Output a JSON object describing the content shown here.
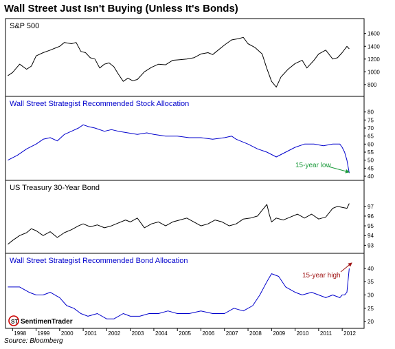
{
  "title": "Wall Street Just Isn't Buying (Unless It's Bonds)",
  "source": "Source: Bloomberg",
  "logo_text": "SentimenTrader",
  "colors": {
    "black": "#000000",
    "blue": "#0000cc",
    "green": "#1a9a3a",
    "red": "#a01818"
  },
  "chart_data": [
    {
      "type": "line",
      "title": "S&P 500",
      "title_color": "#000000",
      "line_color": "#000000",
      "ylim": [
        680,
        1640
      ],
      "yticks": [
        800,
        1000,
        1200,
        1400,
        1600
      ],
      "x": [
        1997.8,
        1998.0,
        1998.3,
        1998.6,
        1998.8,
        1999.0,
        1999.3,
        1999.6,
        1999.8,
        2000.0,
        2000.2,
        2000.5,
        2000.7,
        2000.9,
        2001.1,
        2001.3,
        2001.5,
        2001.7,
        2001.9,
        2002.1,
        2002.3,
        2002.5,
        2002.7,
        2002.9,
        2003.1,
        2003.3,
        2003.6,
        2003.9,
        2004.2,
        2004.5,
        2004.8,
        2005.1,
        2005.4,
        2005.7,
        2006.0,
        2006.3,
        2006.5,
        2006.7,
        2007.0,
        2007.3,
        2007.6,
        2007.8,
        2008.0,
        2008.3,
        2008.6,
        2008.8,
        2009.0,
        2009.2,
        2009.4,
        2009.7,
        2010.0,
        2010.3,
        2010.5,
        2010.8,
        2011.0,
        2011.3,
        2011.6,
        2011.8,
        2012.0,
        2012.2,
        2012.3
      ],
      "y": [
        940,
        990,
        1120,
        1040,
        1090,
        1250,
        1300,
        1340,
        1370,
        1400,
        1460,
        1440,
        1460,
        1320,
        1300,
        1220,
        1200,
        1060,
        1120,
        1140,
        1080,
        960,
        850,
        900,
        860,
        880,
        1000,
        1070,
        1120,
        1110,
        1180,
        1190,
        1200,
        1220,
        1280,
        1300,
        1270,
        1330,
        1420,
        1500,
        1520,
        1540,
        1440,
        1380,
        1280,
        1050,
        850,
        760,
        920,
        1040,
        1130,
        1180,
        1060,
        1180,
        1280,
        1340,
        1200,
        1220,
        1300,
        1400,
        1360
      ]
    },
    {
      "type": "line",
      "title": "Wall Street Strategist Recommended Stock Allocation",
      "title_color": "#0000cc",
      "line_color": "#0000cc",
      "ylim": [
        40,
        82
      ],
      "yticks": [
        40,
        45,
        50,
        55,
        60,
        65,
        70,
        75,
        80
      ],
      "x": [
        1997.8,
        1998.2,
        1998.6,
        1999.0,
        1999.3,
        1999.6,
        1999.9,
        2000.2,
        2000.5,
        2000.8,
        2001.0,
        2001.2,
        2001.5,
        2001.9,
        2002.2,
        2002.5,
        2002.9,
        2003.3,
        2003.7,
        2004.0,
        2004.5,
        2005.0,
        2005.5,
        2006.0,
        2006.5,
        2007.0,
        2007.3,
        2007.5,
        2008.0,
        2008.4,
        2008.8,
        2009.2,
        2009.6,
        2010.0,
        2010.4,
        2010.8,
        2011.2,
        2011.6,
        2011.9,
        2012.0,
        2012.1,
        2012.2,
        2012.3
      ],
      "y": [
        50,
        53,
        57,
        60,
        63,
        64,
        62,
        66,
        68,
        70,
        72,
        71,
        70,
        68,
        69,
        68,
        67,
        66,
        67,
        66,
        65,
        65,
        64,
        64,
        63,
        64,
        65,
        63,
        60,
        57,
        55,
        52,
        55,
        58,
        60,
        60,
        59,
        60,
        60,
        58,
        55,
        50,
        42
      ]
    },
    {
      "type": "line",
      "title": "US Treasury 30-Year Bond",
      "title_color": "#000000",
      "line_color": "#000000",
      "ylim": [
        92.6,
        98.4
      ],
      "yticks": [
        93,
        94,
        95,
        96,
        97
      ],
      "x": [
        1997.8,
        1998.0,
        1998.3,
        1998.6,
        1998.8,
        1999.0,
        1999.3,
        1999.6,
        1999.9,
        2000.2,
        2000.5,
        2000.8,
        2001.0,
        2001.3,
        2001.6,
        2001.9,
        2002.2,
        2002.5,
        2002.8,
        2003.0,
        2003.3,
        2003.6,
        2003.9,
        2004.2,
        2004.5,
        2004.8,
        2005.1,
        2005.4,
        2005.7,
        2006.0,
        2006.3,
        2006.6,
        2006.9,
        2007.2,
        2007.5,
        2007.8,
        2008.1,
        2008.4,
        2008.6,
        2008.8,
        2008.9,
        2009.0,
        2009.2,
        2009.5,
        2009.8,
        2010.1,
        2010.4,
        2010.7,
        2011.0,
        2011.3,
        2011.6,
        2011.8,
        2012.0,
        2012.2,
        2012.3
      ],
      "y": [
        93.1,
        93.5,
        94.0,
        94.3,
        94.7,
        94.5,
        94.0,
        94.4,
        93.8,
        94.3,
        94.6,
        95.0,
        95.2,
        94.9,
        95.1,
        94.8,
        95.0,
        95.3,
        95.6,
        95.4,
        95.8,
        94.8,
        95.2,
        95.4,
        95.0,
        95.4,
        95.6,
        95.8,
        95.4,
        95.0,
        95.2,
        95.6,
        95.4,
        95.0,
        95.2,
        95.7,
        95.8,
        96.0,
        96.6,
        97.2,
        96.2,
        95.4,
        95.8,
        95.6,
        95.9,
        96.2,
        95.8,
        96.2,
        95.7,
        95.9,
        96.8,
        97.0,
        96.9,
        96.8,
        97.3
      ]
    },
    {
      "type": "line",
      "title": "Wall Street Strategist Recommended Bond Allocation",
      "title_color": "#0000cc",
      "line_color": "#0000cc",
      "ylim": [
        19,
        41
      ],
      "yticks": [
        20,
        25,
        30,
        35,
        40
      ],
      "xlabels": [
        "1998",
        "1999",
        "2000",
        "2001",
        "2002",
        "2003",
        "2004",
        "2005",
        "2006",
        "2007",
        "2008",
        "2009",
        "2010",
        "2011",
        "2012"
      ],
      "x": [
        1997.8,
        1998.3,
        1998.7,
        1999.0,
        1999.3,
        1999.6,
        2000.0,
        2000.3,
        2000.6,
        2000.9,
        2001.2,
        2001.6,
        2002.0,
        2002.3,
        2002.7,
        2003.0,
        2003.4,
        2003.8,
        2004.2,
        2004.6,
        2005.0,
        2005.5,
        2006.0,
        2006.5,
        2007.0,
        2007.4,
        2007.8,
        2008.2,
        2008.5,
        2008.8,
        2009.0,
        2009.3,
        2009.6,
        2010.0,
        2010.3,
        2010.7,
        2011.0,
        2011.3,
        2011.6,
        2011.9,
        2012.0,
        2012.1,
        2012.2,
        2012.3
      ],
      "y": [
        33,
        33,
        31,
        30,
        30,
        31,
        29,
        26,
        25,
        23,
        22,
        23,
        21,
        21,
        23,
        22,
        22,
        23,
        23,
        24,
        23,
        23,
        24,
        23,
        23,
        25,
        24,
        26,
        30,
        35,
        38,
        37,
        33,
        31,
        30,
        31,
        30,
        29,
        30,
        29,
        30,
        30,
        31,
        40
      ]
    }
  ],
  "annotations": {
    "low": {
      "label": "15-year low",
      "color": "#1a9a3a"
    },
    "high": {
      "label": "15-year high",
      "color": "#a01818"
    }
  }
}
